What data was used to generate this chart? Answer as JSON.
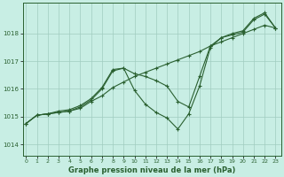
{
  "bg_color": "#c8eee4",
  "grid_color": "#a0ccc0",
  "line_color": "#2a6030",
  "marker_color": "#2a6030",
  "title": "Graphe pression niveau de la mer (hPa)",
  "xlabel_ticks": [
    0,
    1,
    2,
    3,
    4,
    5,
    6,
    7,
    8,
    9,
    10,
    11,
    12,
    13,
    14,
    15,
    16,
    17,
    18,
    19,
    20,
    21,
    22,
    23
  ],
  "yticks": [
    1014,
    1015,
    1016,
    1017,
    1018
  ],
  "ylim": [
    1013.6,
    1019.1
  ],
  "xlim": [
    -0.3,
    23.5
  ],
  "series1_x": [
    0,
    1,
    2,
    3,
    4,
    5,
    6,
    7,
    8,
    9,
    10,
    11,
    12,
    13,
    14,
    15,
    16,
    17,
    18,
    19,
    20,
    21,
    22,
    23
  ],
  "series1_y": [
    1014.75,
    1015.05,
    1015.1,
    1015.15,
    1015.2,
    1015.3,
    1015.55,
    1015.75,
    1016.05,
    1016.25,
    1016.45,
    1016.6,
    1016.75,
    1016.9,
    1017.05,
    1017.2,
    1017.35,
    1017.55,
    1017.7,
    1017.85,
    1018.0,
    1018.15,
    1018.3,
    1018.2
  ],
  "series2_x": [
    0,
    1,
    2,
    3,
    4,
    5,
    6,
    7,
    8,
    9,
    10,
    11,
    12,
    13,
    14,
    15,
    16,
    17,
    18,
    19,
    20,
    21,
    22,
    23
  ],
  "series2_y": [
    1014.75,
    1015.05,
    1015.1,
    1015.15,
    1015.2,
    1015.35,
    1015.6,
    1016.0,
    1016.65,
    1016.75,
    1016.55,
    1016.45,
    1016.3,
    1016.1,
    1015.55,
    1015.35,
    1016.45,
    1017.55,
    1017.85,
    1018.0,
    1018.1,
    1018.55,
    1018.75,
    1018.2
  ],
  "series3_x": [
    0,
    1,
    2,
    3,
    4,
    5,
    6,
    7,
    8,
    9,
    10,
    11,
    12,
    13,
    14,
    15,
    16,
    17,
    18,
    19,
    20,
    21,
    22,
    23
  ],
  "series3_y": [
    1014.75,
    1015.05,
    1015.1,
    1015.2,
    1015.25,
    1015.4,
    1015.65,
    1016.05,
    1016.7,
    1016.75,
    1015.95,
    1015.45,
    1015.15,
    1014.95,
    1014.55,
    1015.1,
    1016.1,
    1017.5,
    1017.85,
    1017.95,
    1018.05,
    1018.5,
    1018.7,
    1018.2
  ]
}
